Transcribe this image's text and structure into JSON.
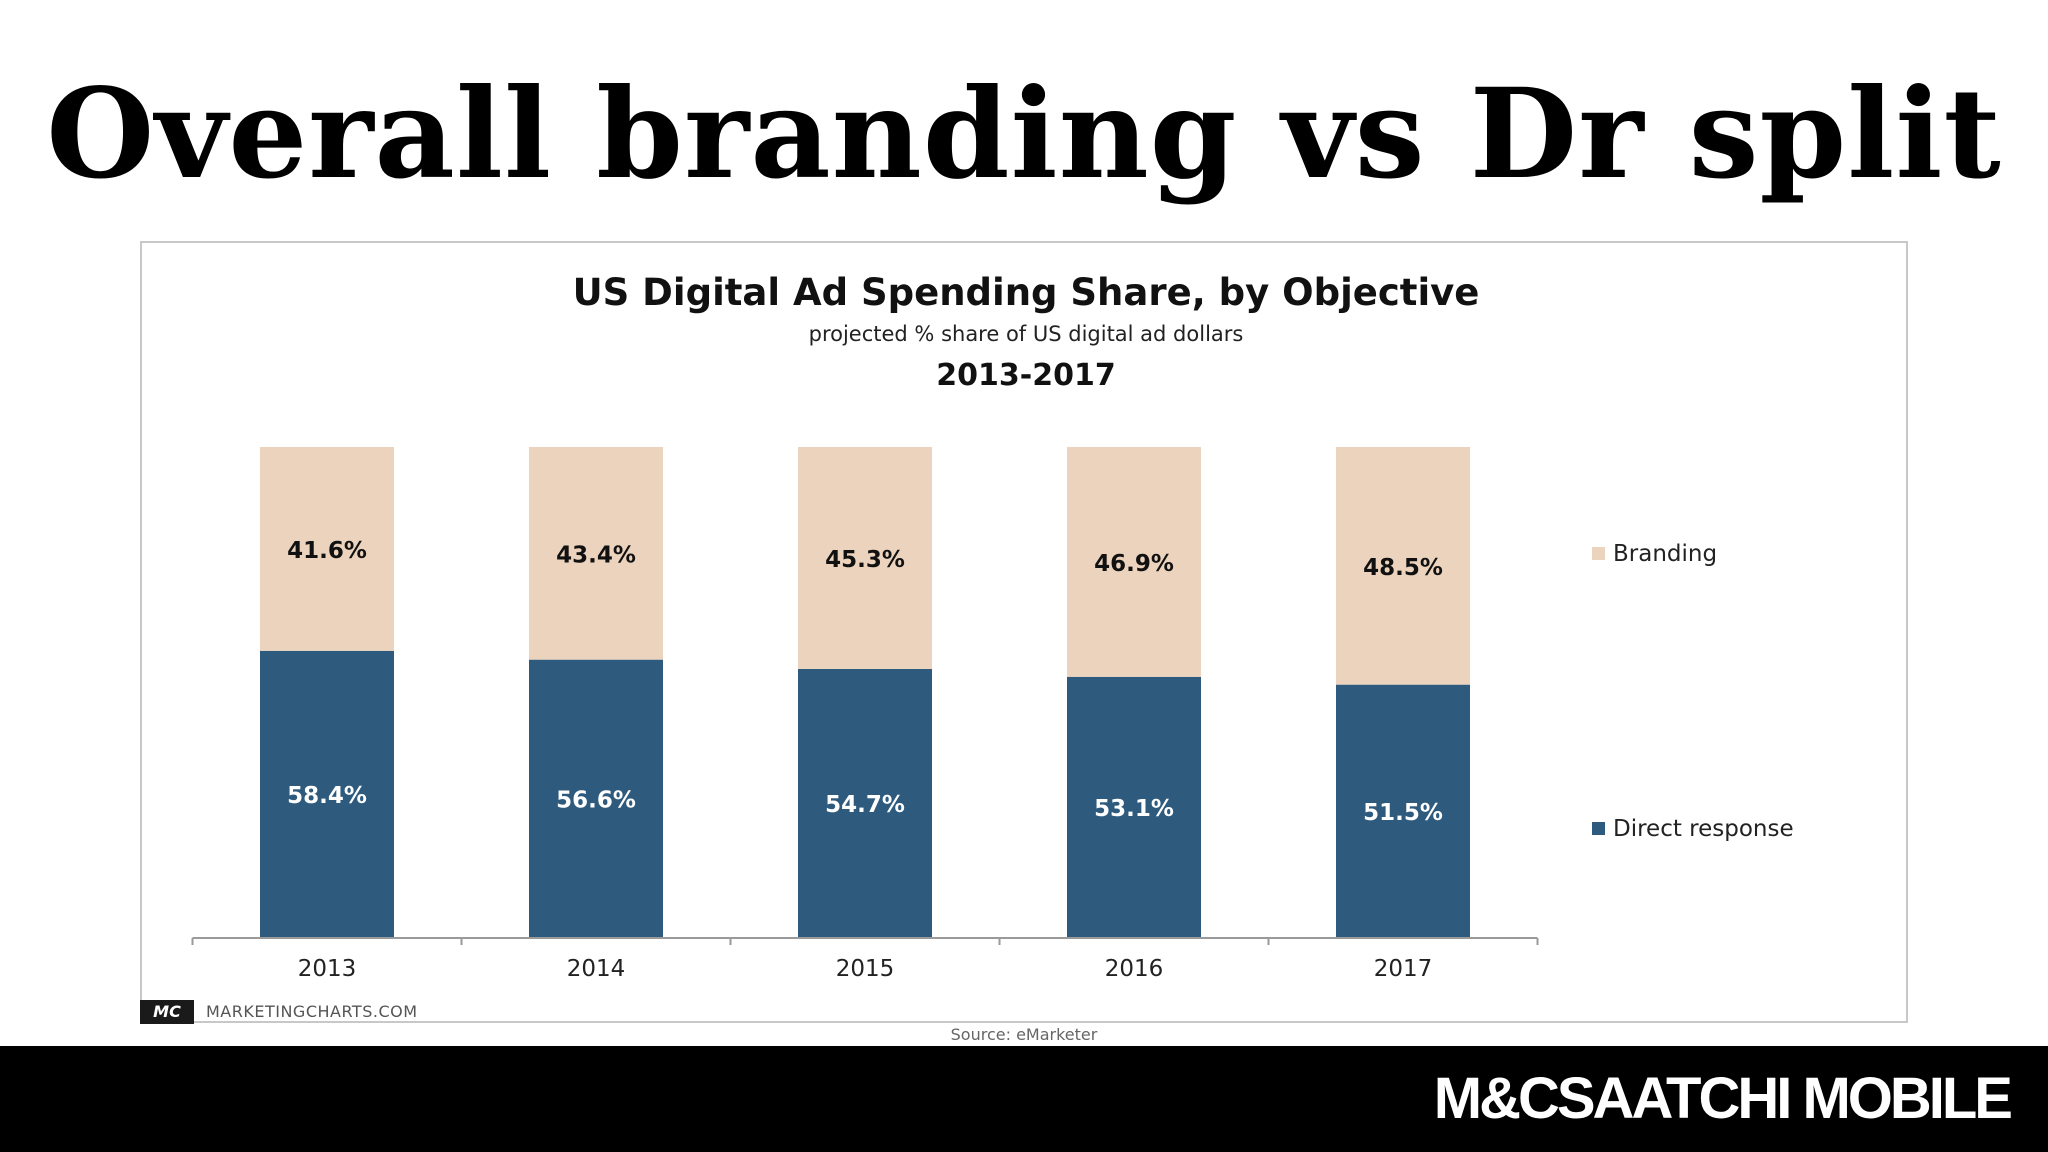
{
  "slide": {
    "title": "Overall branding vs Dr split"
  },
  "chart_data": {
    "type": "bar",
    "stacked": true,
    "title": "US Digital Ad Spending Share, by Objective",
    "subtitle": "projected % share of US digital ad dollars",
    "period": "2013-2017",
    "categories": [
      "2013",
      "2014",
      "2015",
      "2016",
      "2017"
    ],
    "series": [
      {
        "name": "Direct response",
        "color": "#2e5a7e",
        "values": [
          58.4,
          56.6,
          54.7,
          53.1,
          51.5
        ],
        "labels": [
          "58.4%",
          "56.6%",
          "54.7%",
          "53.1%",
          "51.5%"
        ]
      },
      {
        "name": "Branding",
        "color": "#ebd3bd",
        "values": [
          41.6,
          43.4,
          45.3,
          46.9,
          48.5
        ],
        "labels": [
          "41.6%",
          "43.4%",
          "45.3%",
          "46.9%",
          "48.5%"
        ]
      }
    ],
    "ylim": [
      0,
      100
    ],
    "grid": false,
    "legend_position": "right",
    "legend_order": [
      "Branding",
      "Direct response"
    ]
  },
  "attribution": {
    "logo_text": "MC",
    "site": "MARKETINGCHARTS.COM",
    "source": "Source: eMarketer"
  },
  "footer": {
    "brand": "M&CSAATCHI MOBILE"
  }
}
